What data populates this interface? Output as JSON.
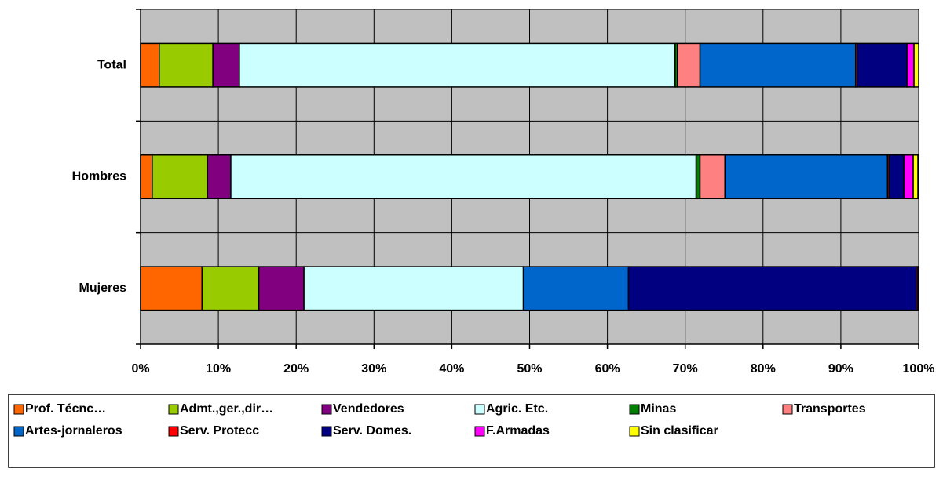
{
  "chart_data": {
    "type": "stacked_barh",
    "categories": [
      "Total",
      "Hombres",
      "Mujeres"
    ],
    "series": [
      {
        "name": "Prof. Técnc…",
        "color": "#ff6600",
        "values": [
          2.4,
          1.5,
          7.9
        ]
      },
      {
        "name": "Admt.,ger.,dir…",
        "color": "#99cc00",
        "values": [
          6.9,
          7.1,
          7.3
        ]
      },
      {
        "name": "Vendedores",
        "color": "#800080",
        "values": [
          3.4,
          3.0,
          5.8
        ]
      },
      {
        "name": "Agric. Etc.",
        "color": "#ccffff",
        "values": [
          56.0,
          59.8,
          28.2
        ]
      },
      {
        "name": "Minas",
        "color": "#008000",
        "values": [
          0.3,
          0.5,
          0
        ]
      },
      {
        "name": "Transportes",
        "color": "#ff8080",
        "values": [
          2.9,
          3.2,
          0
        ]
      },
      {
        "name": "Artes-jornaleros",
        "color": "#0066cc",
        "values": [
          20.0,
          20.9,
          13.5
        ]
      },
      {
        "name": "Serv. Protecc",
        "color": "#ff0000",
        "values": [
          0.2,
          0.2,
          0
        ]
      },
      {
        "name": "Serv. Domes.",
        "color": "#000080",
        "values": [
          6.4,
          1.9,
          37.0
        ]
      },
      {
        "name": "F.Armadas",
        "color": "#ff00ff",
        "values": [
          0.9,
          1.2,
          0.2
        ]
      },
      {
        "name": "Sin clasificar",
        "color": "#ffff00",
        "values": [
          0.6,
          0.6,
          0.1
        ]
      }
    ],
    "xlim": [
      0,
      100
    ],
    "xticks": [
      {
        "value": 0,
        "label": "0%"
      },
      {
        "value": 10,
        "label": "10%"
      },
      {
        "value": 20,
        "label": "20%"
      },
      {
        "value": 30,
        "label": "30%"
      },
      {
        "value": 40,
        "label": "40%"
      },
      {
        "value": 50,
        "label": "50%"
      },
      {
        "value": 60,
        "label": "60%"
      },
      {
        "value": 70,
        "label": "70%"
      },
      {
        "value": 80,
        "label": "80%"
      },
      {
        "value": 90,
        "label": "90%"
      },
      {
        "value": 100,
        "label": "100%"
      }
    ],
    "grid": true,
    "plot_background": "#c0c0c0",
    "legend": "bottom"
  }
}
